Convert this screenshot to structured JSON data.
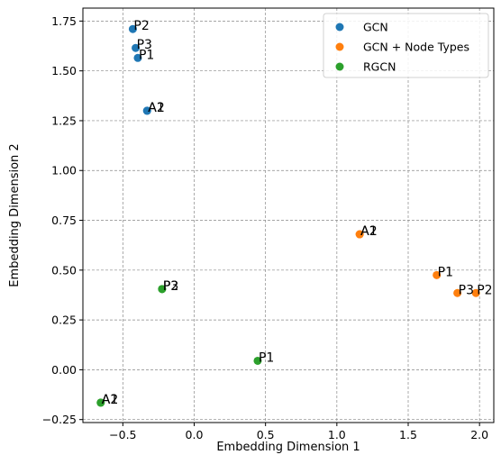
{
  "chart_data": {
    "type": "scatter",
    "xlabel": "Embedding Dimension 1",
    "ylabel": "Embedding Dimension 2",
    "xlim": [
      -0.78,
      2.1
    ],
    "ylim": [
      -0.265,
      1.815
    ],
    "xticks": [
      -0.5,
      0.0,
      0.5,
      1.0,
      1.5,
      2.0
    ],
    "xtick_labels": [
      "−0.5",
      "0.0",
      "0.5",
      "1.0",
      "1.5",
      "2.0"
    ],
    "yticks": [
      -0.25,
      0.0,
      0.25,
      0.5,
      0.75,
      1.0,
      1.25,
      1.5,
      1.75
    ],
    "ytick_labels": [
      "−0.25",
      "0.00",
      "0.25",
      "0.50",
      "0.75",
      "1.00",
      "1.25",
      "1.50",
      "1.75"
    ],
    "grid": true,
    "legend_position": "top-right",
    "series": [
      {
        "name": "GCN",
        "color": "#1f77b4",
        "points": [
          {
            "label": "P2",
            "x": -0.43,
            "y": 1.71
          },
          {
            "label": "P3",
            "x": -0.41,
            "y": 1.615
          },
          {
            "label": "P1",
            "x": -0.395,
            "y": 1.565
          },
          {
            "label": "A2",
            "x": -0.33,
            "y": 1.3
          },
          {
            "label": "A1",
            "x": -0.33,
            "y": 1.3
          }
        ]
      },
      {
        "name": "GCN + Node Types",
        "color": "#ff7f0e",
        "points": [
          {
            "label": "A2",
            "x": 1.16,
            "y": 0.68
          },
          {
            "label": "A1",
            "x": 1.16,
            "y": 0.68
          },
          {
            "label": "P1",
            "x": 1.7,
            "y": 0.475
          },
          {
            "label": "P3",
            "x": 1.845,
            "y": 0.385
          },
          {
            "label": "P2",
            "x": 1.975,
            "y": 0.385
          }
        ]
      },
      {
        "name": "RGCN",
        "color": "#2ca02c",
        "points": [
          {
            "label": "P2",
            "x": -0.225,
            "y": 0.405
          },
          {
            "label": "P3",
            "x": -0.225,
            "y": 0.405
          },
          {
            "label": "P1",
            "x": 0.445,
            "y": 0.045
          },
          {
            "label": "A2",
            "x": -0.655,
            "y": -0.165
          },
          {
            "label": "A1",
            "x": -0.655,
            "y": -0.165
          }
        ]
      }
    ]
  }
}
